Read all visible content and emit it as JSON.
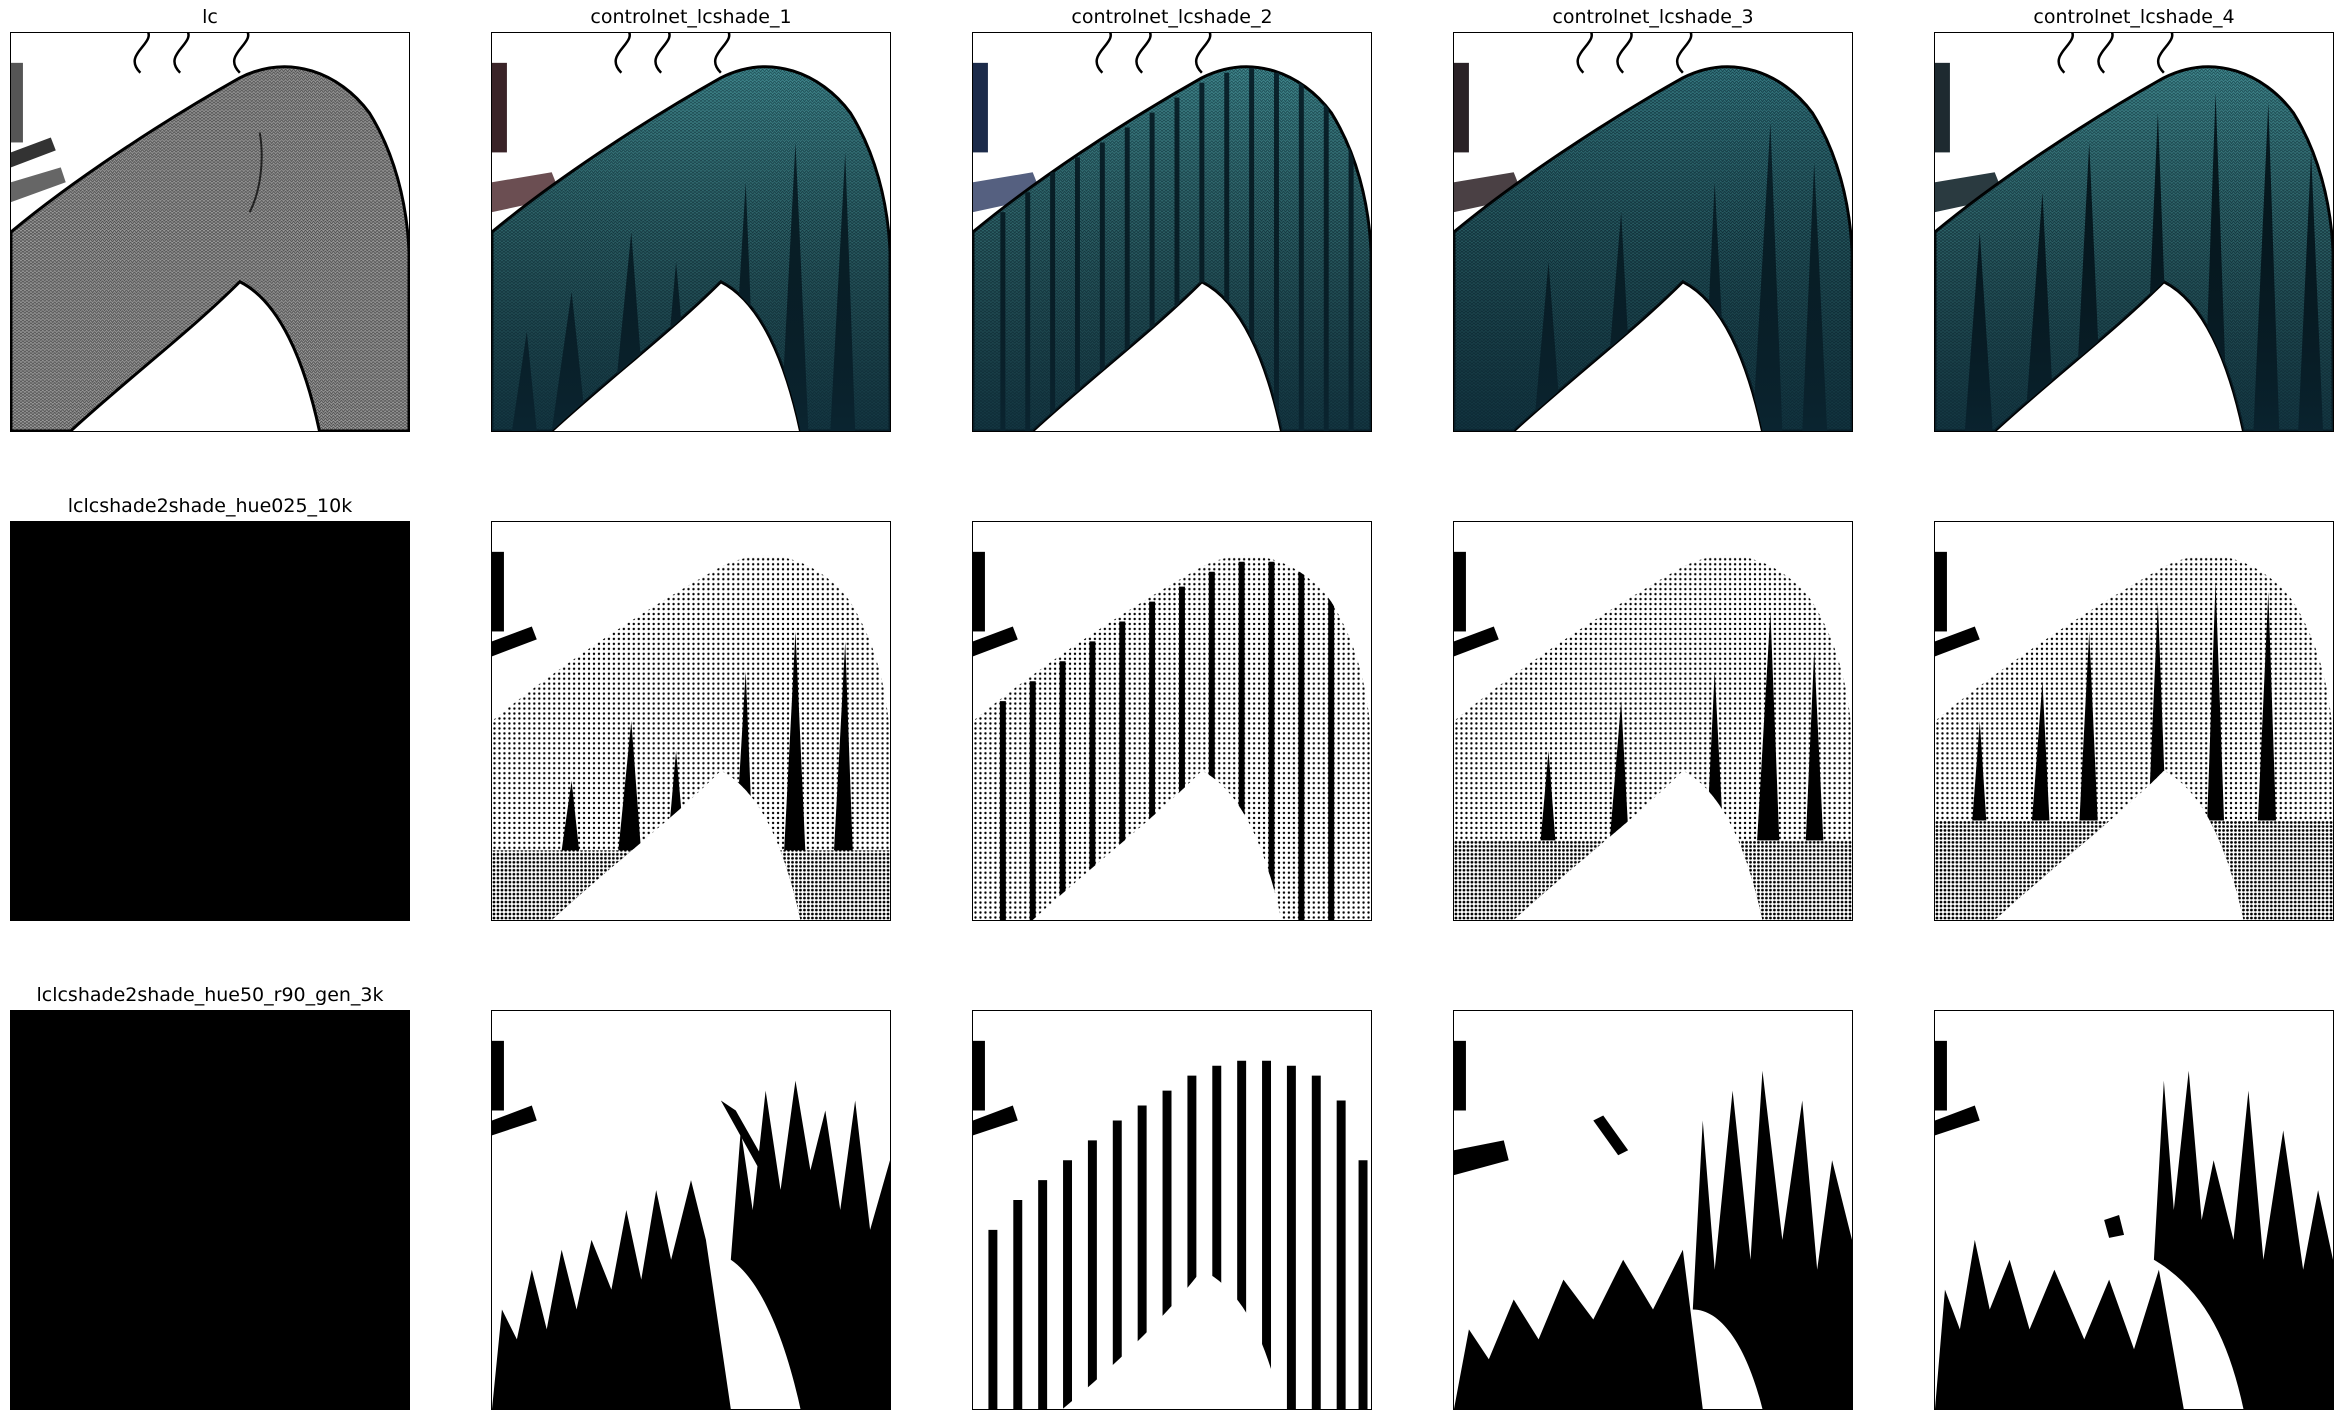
{
  "titles": {
    "r0c0": "lc",
    "r0c1": "controlnet_lcshade_1",
    "r0c2": "controlnet_lcshade_2",
    "r0c3": "controlnet_lcshade_3",
    "r0c4": "controlnet_lcshade_4",
    "r1c0": "lclcshade2shade_hue025_10k",
    "r2c0": "lclcshade2shade_hue50_r90_gen_3k"
  },
  "colors": {
    "background": "#ffffff",
    "frame": "#000000",
    "teal_fabric": "#3f8f95",
    "teal_dark": "#123a48",
    "gray_fabric": "#8a8a8a",
    "empty_panel": "#000000"
  },
  "grid": {
    "rows": 3,
    "cols": 5,
    "row_styles": [
      "color-render",
      "halftone-shade",
      "flat-shade"
    ],
    "col0_styles": [
      "lineart",
      "empty-black",
      "empty-black"
    ]
  }
}
